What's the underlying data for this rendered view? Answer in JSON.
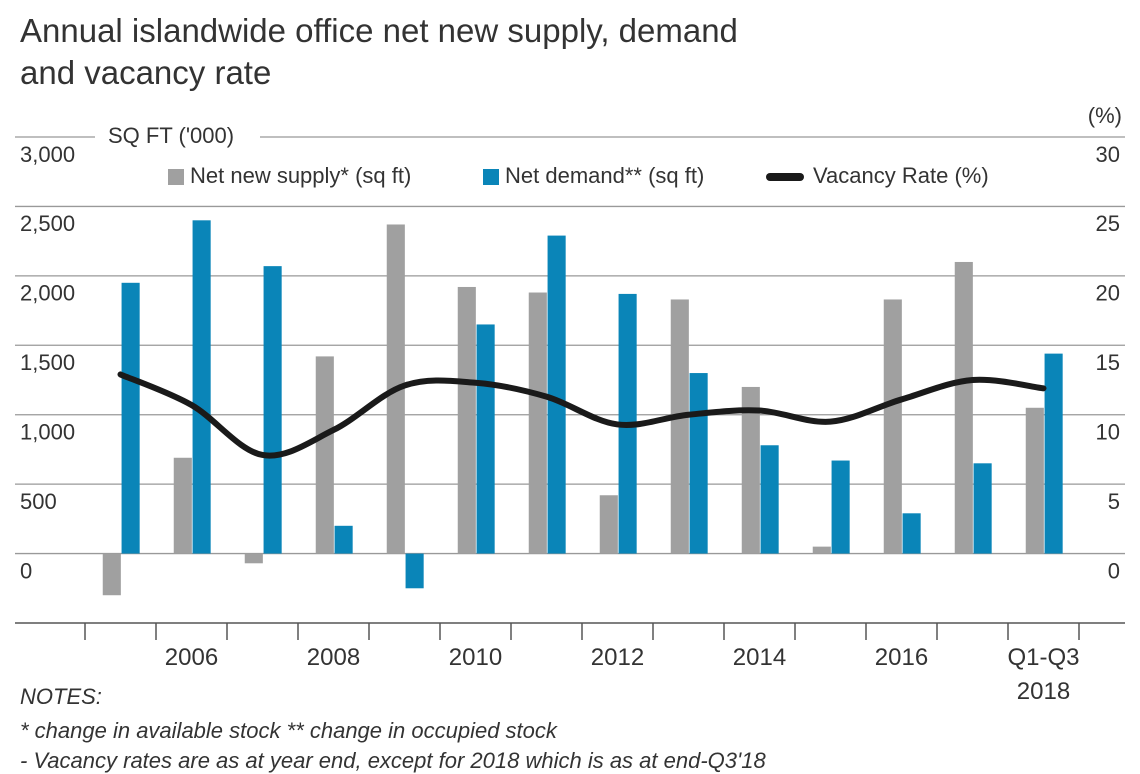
{
  "chart_data": {
    "type": "bar_line",
    "title": "Annual islandwide office net new supply, demand and vacancy rate",
    "y_label": "SQ FT ('000)",
    "y2_label": "(%)",
    "categories": [
      null,
      "2006",
      null,
      "2008",
      null,
      "2010",
      null,
      "2012",
      null,
      "2014",
      null,
      "2016",
      null,
      "Q1-Q3 2018"
    ],
    "series": [
      {
        "name": "Net new supply* (sq ft)",
        "color": "#a0a0a0",
        "kind": "bar",
        "values": [
          -300,
          690,
          -70,
          1420,
          2370,
          1920,
          1880,
          420,
          1830,
          1200,
          50,
          1830,
          2100,
          1050
        ]
      },
      {
        "name": "Net demand** (sq ft)",
        "color": "#0a85b8",
        "kind": "bar",
        "values": [
          1950,
          2400,
          2070,
          200,
          -250,
          1650,
          2290,
          1870,
          1300,
          780,
          670,
          290,
          650,
          1440
        ]
      },
      {
        "name": "Vacancy Rate (%)",
        "color": "#1a1a1a",
        "kind": "line",
        "axis": "y2",
        "values": [
          12.9,
          10.7,
          7.1,
          8.9,
          12.1,
          12.3,
          11.3,
          9.3,
          10.0,
          10.3,
          9.5,
          11.1,
          12.5,
          11.9
        ]
      }
    ],
    "ylim": [
      -500,
      3000
    ],
    "yticks": [
      0,
      500,
      {
        "value": 1000,
        "label": "1,000"
      },
      {
        "value": 1500,
        "label": "1,500"
      },
      {
        "value": 2000,
        "label": "2,000"
      },
      {
        "value": 2500,
        "label": "2,500"
      },
      {
        "value": 3000,
        "label": "3,000"
      }
    ],
    "y2lim": [
      -5,
      30
    ],
    "y2ticks": [
      0,
      5,
      10,
      15,
      20,
      25,
      30
    ],
    "grid": true,
    "notes": [
      "NOTES:",
      "* change in available stock   ** change in occupied stock",
      "- Vacancy rates are as at year end, except for 2018 which is as at end-Q3'18"
    ]
  }
}
